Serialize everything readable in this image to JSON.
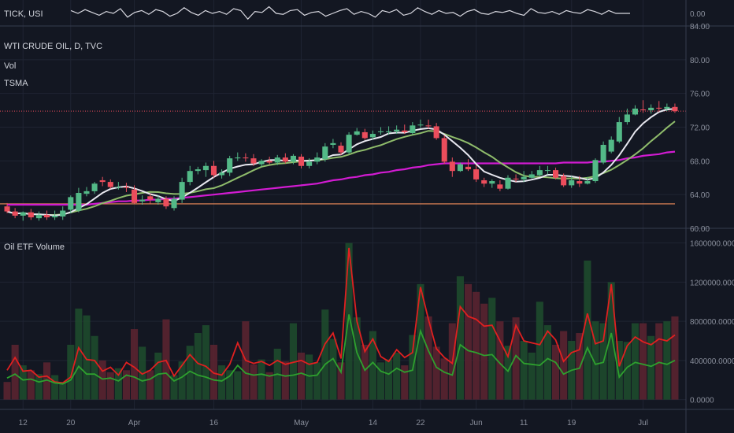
{
  "panes": {
    "tick": {
      "label": "TICK, USI",
      "tick_labels": [
        "0.00"
      ]
    },
    "price": {
      "title": "WTI CRUDE OIL, D, TVC",
      "indicators": [
        "Vol",
        "TSMA"
      ],
      "tick_labels": [
        "60.00",
        "64.00",
        "68.00",
        "72.00",
        "76.00",
        "80.00",
        "84.00"
      ]
    },
    "volume": {
      "title": "Oil ETF Volume",
      "tick_labels": [
        "0.0000",
        "400000.0000",
        "800000.0000",
        "1200000.0000",
        "1600000.0000"
      ]
    }
  },
  "x_axis_labels": [
    "12",
    "20",
    "Apr",
    "16",
    "May",
    "14",
    "22",
    "Jun",
    "11",
    "19",
    "Jul"
  ],
  "colors": {
    "background": "#131722",
    "grid": "#1f2433",
    "up": "#53b987",
    "down": "#eb4d5c",
    "sma_fast": "#e8e8f0",
    "sma_slow": "#8fbc6b",
    "sma_long": "#d21bd2",
    "support": "#f28c5a",
    "last_price": "#eb4d5c",
    "vol_red_line": "#e02020",
    "vol_green_line": "#2ea02e"
  },
  "chart_data": [
    {
      "type": "line",
      "series": [
        {
          "values": [
            0.3,
            0.0,
            0.4,
            0.1,
            -0.2,
            0.2,
            0.0,
            0.5,
            -0.4,
            0.1,
            0.3,
            -0.1,
            0.4,
            0.2,
            -0.3,
            0.0,
            0.6,
            0.1,
            -0.2,
            0.3,
            0.0,
            0.2,
            -0.1,
            0.5,
            0.3,
            -0.6,
            0.2,
            0.1,
            0.7,
            0.0,
            -0.1,
            0.3,
            0.4,
            -0.2,
            0.1,
            0.2,
            -0.3,
            0.0,
            0.3,
            0.5,
            -0.1,
            0.2,
            0.0,
            -0.4,
            0.3,
            0.1,
            0.4,
            -0.2,
            0.0,
            0.6,
            0.2,
            -0.1,
            0.3,
            0.0,
            0.1,
            -0.3,
            0.2,
            0.4,
            0.0,
            -0.1,
            0.2,
            0.1,
            0.3,
            0.0,
            -0.2,
            0.5,
            0.1,
            0.0,
            0.2,
            -0.1,
            0.3,
            0.1,
            0.0,
            0.4,
            0.2,
            -0.1,
            0.3,
            0.0,
            0.0,
            0.0
          ]
        }
      ],
      "ylim": [
        -1,
        1
      ]
    },
    {
      "type": "candlestick",
      "x": [
        "Mar 08",
        "Mar 09",
        "Mar 12",
        "Mar 13",
        "Mar 14",
        "Mar 15",
        "Mar 16",
        "Mar 19",
        "Mar 20",
        "Mar 21",
        "Mar 22",
        "Mar 23",
        "Mar 26",
        "Mar 27",
        "Mar 28",
        "Mar 29",
        "Apr 02",
        "Apr 03",
        "Apr 04",
        "Apr 05",
        "Apr 06",
        "Apr 09",
        "Apr 10",
        "Apr 11",
        "Apr 12",
        "Apr 13",
        "Apr 16",
        "Apr 17",
        "Apr 18",
        "Apr 19",
        "Apr 20",
        "Apr 23",
        "Apr 24",
        "Apr 25",
        "Apr 26",
        "Apr 27",
        "Apr 30",
        "May 01",
        "May 02",
        "May 03",
        "May 04",
        "May 07",
        "May 08",
        "May 09",
        "May 10",
        "May 11",
        "May 14",
        "May 15",
        "May 16",
        "May 17",
        "May 18",
        "May 21",
        "May 22",
        "May 23",
        "May 24",
        "May 25",
        "May 29",
        "May 30",
        "May 31",
        "Jun 01",
        "Jun 04",
        "Jun 05",
        "Jun 06",
        "Jun 07",
        "Jun 08",
        "Jun 11",
        "Jun 12",
        "Jun 13",
        "Jun 14",
        "Jun 15",
        "Jun 18",
        "Jun 19",
        "Jun 20",
        "Jun 21",
        "Jun 22",
        "Jun 25",
        "Jun 26",
        "Jun 27",
        "Jun 28",
        "Jun 29",
        "Jul 02",
        "Jul 03",
        "Jul 05",
        "Jul 06",
        "Jul 09"
      ],
      "open": [
        62.6,
        62.0,
        61.5,
        61.9,
        61.2,
        61.6,
        61.3,
        61.4,
        62.2,
        62.1,
        64.1,
        64.4,
        65.7,
        65.5,
        64.9,
        64.9,
        64.6,
        63.2,
        63.8,
        63.1,
        63.5,
        62.4,
        63.4,
        65.5,
        66.8,
        66.9,
        67.4,
        66.3,
        66.6,
        68.3,
        68.4,
        68.3,
        67.6,
        68.0,
        67.8,
        68.4,
        67.9,
        68.5,
        67.4,
        67.9,
        68.2,
        69.9,
        69.8,
        69.0,
        71.1,
        71.4,
        70.8,
        71.4,
        71.4,
        71.5,
        71.6,
        71.3,
        72.3,
        72.2,
        72.1,
        70.7,
        67.9,
        66.8,
        67.3,
        67.0,
        65.7,
        65.3,
        65.2,
        64.7,
        65.9,
        65.8,
        66.0,
        66.3,
        66.9,
        66.9,
        66.2,
        65.1,
        65.6,
        65.3,
        65.6,
        67.8,
        69.1,
        70.3,
        72.6,
        73.5,
        74.1,
        74.0,
        74.3,
        74.2,
        74.4
      ],
      "high": [
        63.0,
        62.4,
        62.0,
        62.3,
        62.0,
        62.1,
        62.1,
        62.6,
        63.9,
        64.8,
        64.9,
        65.5,
        66.1,
        65.8,
        65.5,
        65.4,
        65.1,
        63.9,
        64.1,
        63.9,
        63.8,
        63.8,
        66.0,
        67.4,
        67.3,
        67.8,
        68.0,
        67.0,
        68.6,
        69.0,
        68.9,
        68.8,
        68.2,
        68.5,
        68.7,
        68.9,
        68.8,
        68.8,
        68.3,
        69.0,
        70.1,
        70.6,
        70.2,
        71.4,
        71.9,
        71.8,
        71.6,
        72.0,
        72.1,
        72.2,
        72.3,
        72.6,
        72.9,
        72.9,
        72.5,
        71.0,
        68.4,
        67.8,
        68.2,
        67.5,
        66.0,
        65.8,
        65.7,
        66.3,
        66.4,
        66.8,
        66.8,
        67.4,
        67.4,
        67.2,
        66.5,
        66.2,
        66.2,
        66.1,
        68.3,
        70.3,
        70.9,
        73.2,
        74.2,
        74.6,
        75.2,
        74.7,
        75.1,
        74.8,
        74.8
      ],
      "low": [
        61.8,
        61.2,
        60.9,
        61.0,
        60.9,
        61.0,
        61.0,
        61.0,
        61.8,
        61.9,
        63.8,
        64.1,
        65.0,
        64.7,
        64.6,
        64.3,
        62.9,
        62.8,
        62.9,
        62.8,
        62.3,
        62.1,
        63.0,
        65.1,
        66.4,
        66.1,
        66.0,
        65.9,
        66.2,
        68.0,
        67.9,
        67.4,
        67.3,
        67.6,
        67.5,
        67.7,
        67.6,
        67.1,
        67.1,
        67.6,
        67.9,
        69.5,
        68.7,
        68.8,
        71.0,
        70.5,
        70.5,
        71.1,
        71.1,
        71.2,
        71.2,
        71.1,
        71.9,
        71.8,
        70.5,
        67.6,
        66.1,
        66.7,
        66.8,
        65.5,
        64.9,
        64.8,
        64.4,
        64.6,
        65.5,
        65.5,
        65.9,
        66.2,
        66.4,
        65.8,
        64.9,
        64.8,
        64.9,
        65.2,
        65.4,
        67.6,
        68.9,
        70.1,
        72.3,
        73.4,
        73.7,
        73.6,
        73.8,
        73.9,
        73.7
      ],
      "close": [
        62.0,
        61.5,
        61.9,
        61.3,
        61.6,
        61.3,
        61.5,
        62.1,
        63.7,
        64.2,
        64.4,
        65.3,
        65.5,
        64.9,
        64.9,
        64.8,
        63.0,
        63.4,
        63.4,
        63.5,
        62.6,
        63.5,
        65.5,
        66.8,
        67.0,
        67.4,
        66.3,
        66.6,
        68.3,
        68.4,
        68.3,
        67.7,
        68.0,
        67.8,
        68.4,
        67.9,
        68.6,
        67.4,
        67.9,
        68.4,
        69.7,
        70.1,
        69.0,
        71.1,
        71.5,
        70.7,
        71.2,
        71.5,
        71.5,
        71.7,
        71.4,
        72.2,
        72.3,
        72.1,
        70.7,
        67.9,
        66.8,
        67.6,
        67.0,
        65.8,
        65.3,
        65.6,
        64.7,
        66.0,
        65.8,
        66.1,
        66.4,
        66.9,
        66.9,
        66.0,
        65.1,
        65.7,
        65.3,
        65.6,
        68.1,
        69.9,
        70.5,
        72.6,
        73.5,
        74.2,
        74.0,
        74.3,
        74.2,
        74.4,
        73.9
      ],
      "sma_long": [
        62.8,
        62.8,
        62.8,
        62.8,
        62.8,
        62.8,
        62.8,
        62.8,
        62.8,
        62.8,
        62.8,
        62.9,
        63.0,
        63.1,
        63.2,
        63.2,
        63.3,
        63.3,
        63.4,
        63.4,
        63.5,
        63.5,
        63.6,
        63.7,
        63.8,
        63.9,
        64.0,
        64.1,
        64.2,
        64.3,
        64.4,
        64.5,
        64.6,
        64.7,
        64.8,
        64.9,
        65.0,
        65.1,
        65.2,
        65.3,
        65.5,
        65.7,
        65.8,
        66.0,
        66.1,
        66.3,
        66.4,
        66.6,
        66.7,
        66.9,
        67.0,
        67.2,
        67.3,
        67.5,
        67.6,
        67.7,
        67.7,
        67.7,
        67.7,
        67.7,
        67.7,
        67.7,
        67.7,
        67.7,
        67.7,
        67.7,
        67.7,
        67.7,
        67.7,
        67.7,
        67.8,
        67.8,
        67.8,
        67.8,
        67.9,
        67.9,
        68.0,
        68.1,
        68.3,
        68.4,
        68.6,
        68.7,
        68.8,
        69.0,
        69.1
      ],
      "hline_support": 62.9,
      "hline_last": 73.9,
      "ylim": [
        60,
        84
      ]
    },
    {
      "type": "bar",
      "values": [
        180000,
        560000,
        350000,
        300000,
        260000,
        380000,
        250000,
        180000,
        560000,
        930000,
        860000,
        650000,
        400000,
        280000,
        320000,
        300000,
        720000,
        540000,
        300000,
        480000,
        820000,
        250000,
        390000,
        550000,
        680000,
        760000,
        560000,
        350000,
        300000,
        290000,
        800000,
        360000,
        410000,
        280000,
        520000,
        390000,
        780000,
        480000,
        460000,
        380000,
        920000,
        620000,
        380000,
        1600000,
        840000,
        560000,
        700000,
        380000,
        410000,
        480000,
        350000,
        660000,
        1180000,
        850000,
        540000,
        420000,
        780000,
        1260000,
        1180000,
        1100000,
        980000,
        1040000,
        800000,
        550000,
        840000,
        600000,
        480000,
        1000000,
        760000,
        560000,
        700000,
        600000,
        680000,
        1420000,
        800000,
        780000,
        1200000,
        600000,
        590000,
        780000,
        780000,
        650000,
        780000,
        800000,
        850000
      ],
      "line_red": [
        300000,
        430000,
        290000,
        300000,
        230000,
        240000,
        180000,
        170000,
        230000,
        530000,
        410000,
        400000,
        290000,
        330000,
        250000,
        380000,
        330000,
        260000,
        300000,
        380000,
        400000,
        240000,
        350000,
        460000,
        370000,
        340000,
        270000,
        250000,
        360000,
        580000,
        400000,
        370000,
        390000,
        350000,
        400000,
        360000,
        380000,
        400000,
        360000,
        380000,
        570000,
        680000,
        420000,
        1550000,
        800000,
        490000,
        620000,
        440000,
        390000,
        510000,
        430000,
        480000,
        1150000,
        820000,
        520000,
        430000,
        370000,
        950000,
        850000,
        820000,
        750000,
        760000,
        600000,
        440000,
        760000,
        600000,
        580000,
        560000,
        700000,
        610000,
        390000,
        480000,
        510000,
        880000,
        570000,
        600000,
        1180000,
        340000,
        550000,
        640000,
        590000,
        560000,
        620000,
        600000,
        660000
      ],
      "line_green": [
        220000,
        260000,
        200000,
        210000,
        180000,
        200000,
        170000,
        160000,
        200000,
        340000,
        260000,
        260000,
        210000,
        220000,
        190000,
        250000,
        230000,
        190000,
        210000,
        260000,
        270000,
        190000,
        230000,
        290000,
        250000,
        230000,
        200000,
        190000,
        240000,
        350000,
        270000,
        250000,
        260000,
        240000,
        260000,
        240000,
        250000,
        270000,
        240000,
        250000,
        360000,
        420000,
        280000,
        870000,
        480000,
        300000,
        380000,
        290000,
        260000,
        320000,
        280000,
        300000,
        700000,
        500000,
        330000,
        280000,
        250000,
        560000,
        500000,
        480000,
        450000,
        460000,
        370000,
        290000,
        450000,
        370000,
        360000,
        350000,
        420000,
        380000,
        260000,
        300000,
        320000,
        530000,
        360000,
        380000,
        680000,
        230000,
        330000,
        380000,
        360000,
        340000,
        380000,
        360000,
        400000
      ],
      "ylim": [
        -100000,
        1750000
      ]
    }
  ]
}
